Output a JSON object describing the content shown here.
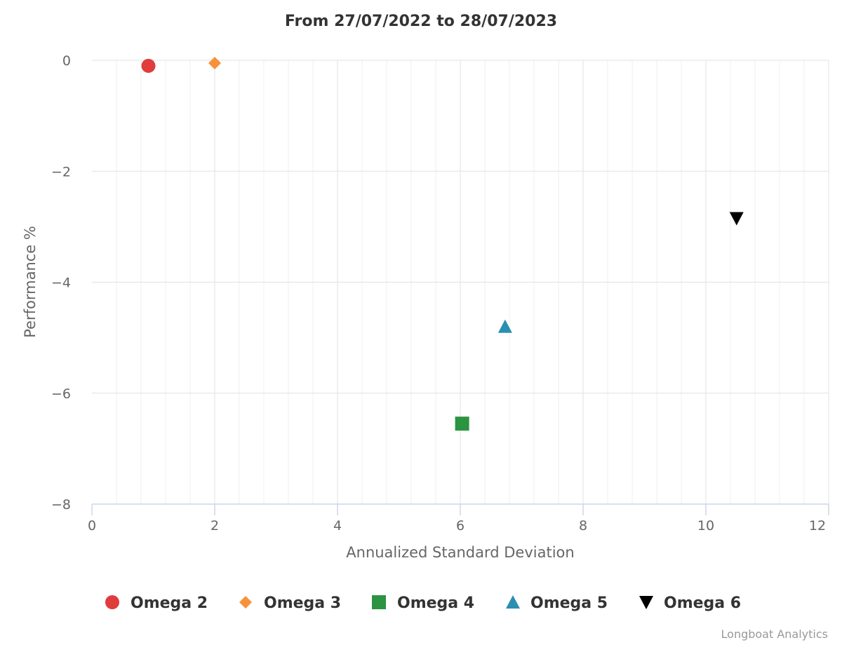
{
  "chart_data": {
    "type": "scatter",
    "title": "From 27/07/2022 to 28/07/2023",
    "xlabel": "Annualized Standard Deviation",
    "ylabel": "Performance %",
    "xlim": [
      0,
      12
    ],
    "ylim": [
      -8,
      0
    ],
    "x_ticks": [
      "0",
      "2",
      "4",
      "6",
      "8",
      "10",
      "12"
    ],
    "y_ticks": [
      "0",
      "−2",
      "−4",
      "−6",
      "−8"
    ],
    "x_minor_step": 0.4,
    "grid": true,
    "legend_position": "bottom",
    "series": [
      {
        "name": "Omega 2",
        "marker": "circle",
        "color": "#e03c3c",
        "x": 0.92,
        "y": -0.1
      },
      {
        "name": "Omega 3",
        "marker": "diamond",
        "color": "#f7923a",
        "x": 2.0,
        "y": -0.05
      },
      {
        "name": "Omega 4",
        "marker": "square",
        "color": "#2a9440",
        "x": 6.03,
        "y": -6.55
      },
      {
        "name": "Omega 5",
        "marker": "triangle-up",
        "color": "#2a8fb0",
        "x": 6.73,
        "y": -4.8
      },
      {
        "name": "Omega 6",
        "marker": "triangle-down",
        "color": "#000000",
        "x": 10.5,
        "y": -2.85
      }
    ]
  },
  "credit": "Longboat Analytics"
}
